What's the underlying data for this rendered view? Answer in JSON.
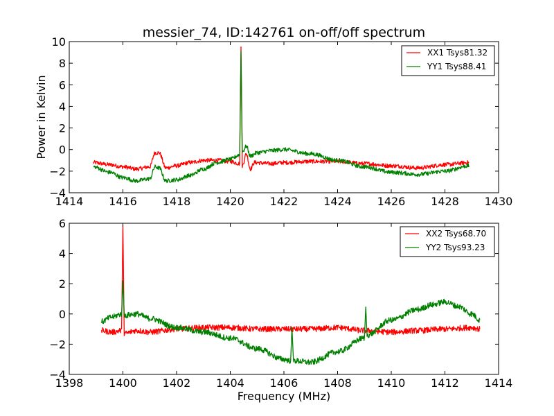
{
  "chart_data": [
    {
      "type": "line",
      "title": "messier_74, ID:142761 on-off/off spectrum",
      "xlabel": "",
      "ylabel": "Power in Kelvin",
      "xlim": [
        1414,
        1430
      ],
      "ylim": [
        -4,
        10
      ],
      "xticks": [
        "1414",
        "1416",
        "1418",
        "1420",
        "1422",
        "1424",
        "1426",
        "1428",
        "1430"
      ],
      "yticks": [
        "-4",
        "-2",
        "0",
        "2",
        "4",
        "6",
        "8",
        "10"
      ],
      "legend_position": "top-right",
      "grid": false,
      "series": [
        {
          "name": "XX1 Tsys81.32",
          "color": "#ff0000",
          "x": [
            1414.9,
            1415.5,
            1416.0,
            1416.5,
            1417.0,
            1417.2,
            1417.35,
            1417.6,
            1418.0,
            1418.5,
            1419.0,
            1419.5,
            1420.0,
            1420.35,
            1420.4,
            1420.45,
            1420.6,
            1420.75,
            1420.9,
            1421.5,
            1422.0,
            1423.0,
            1424.0,
            1425.0,
            1426.0,
            1427.0,
            1428.0,
            1428.9
          ],
          "y": [
            -1.2,
            -1.4,
            -1.6,
            -1.8,
            -1.6,
            -0.3,
            -0.3,
            -1.7,
            -1.5,
            -1.2,
            -1.0,
            -1.0,
            -1.1,
            -1.3,
            9.4,
            -1.5,
            -0.4,
            -1.8,
            -1.2,
            -1.3,
            -1.2,
            -1.1,
            -1.1,
            -1.3,
            -1.5,
            -1.7,
            -1.4,
            -1.2
          ]
        },
        {
          "name": "YY1 Tsys88.41",
          "color": "#008000",
          "x": [
            1414.9,
            1415.5,
            1416.0,
            1416.5,
            1417.0,
            1417.2,
            1417.35,
            1417.6,
            1418.0,
            1418.5,
            1419.0,
            1419.5,
            1420.0,
            1420.35,
            1420.4,
            1420.45,
            1420.6,
            1420.75,
            1421.0,
            1421.5,
            1422.0,
            1423.0,
            1424.0,
            1425.0,
            1426.0,
            1427.0,
            1428.0,
            1428.9
          ],
          "y": [
            -1.6,
            -2.1,
            -2.6,
            -2.9,
            -2.7,
            -1.6,
            -1.7,
            -2.9,
            -2.8,
            -2.4,
            -1.8,
            -1.2,
            -0.9,
            -0.5,
            9.2,
            -0.2,
            0.3,
            -0.6,
            -0.3,
            -0.1,
            0.0,
            -0.4,
            -1.0,
            -1.6,
            -2.1,
            -2.3,
            -2.0,
            -1.5
          ]
        }
      ]
    },
    {
      "type": "line",
      "title": "",
      "xlabel": "Frequency (MHz)",
      "ylabel": "",
      "xlim": [
        1398,
        1414
      ],
      "ylim": [
        -4,
        6
      ],
      "xticks": [
        "1398",
        "1400",
        "1402",
        "1404",
        "1406",
        "1408",
        "1410",
        "1412",
        "1414"
      ],
      "yticks": [
        "-4",
        "-2",
        "0",
        "2",
        "4",
        "6"
      ],
      "legend_position": "top-right",
      "grid": false,
      "series": [
        {
          "name": "XX2 Tsys68.70",
          "color": "#ff0000",
          "x": [
            1399.2,
            1399.6,
            1399.95,
            1400.0,
            1400.05,
            1400.5,
            1401.0,
            1402.0,
            1403.0,
            1404.0,
            1405.0,
            1406.0,
            1407.0,
            1408.0,
            1409.0,
            1410.0,
            1411.0,
            1412.0,
            1413.0,
            1413.3
          ],
          "y": [
            -1.1,
            -1.2,
            -1.1,
            6.0,
            -1.3,
            -1.1,
            -1.2,
            -1.0,
            -0.9,
            -0.9,
            -1.0,
            -1.0,
            -1.0,
            -0.9,
            -1.1,
            -1.2,
            -1.1,
            -1.0,
            -0.9,
            -1.0
          ]
        },
        {
          "name": "YY2 Tsys93.23",
          "color": "#008000",
          "x": [
            1399.2,
            1399.6,
            1399.95,
            1400.0,
            1400.05,
            1400.5,
            1401.0,
            1402.0,
            1403.0,
            1404.0,
            1405.0,
            1406.0,
            1406.25,
            1406.3,
            1406.35,
            1407.0,
            1408.0,
            1409.0,
            1409.05,
            1409.1,
            1410.0,
            1411.0,
            1411.5,
            1412.0,
            1412.5,
            1413.0,
            1413.3
          ],
          "y": [
            -0.5,
            -0.2,
            0.0,
            2.1,
            -0.1,
            0.0,
            -0.3,
            -0.9,
            -1.2,
            -1.6,
            -2.3,
            -3.0,
            -3.1,
            -1.0,
            -3.1,
            -3.2,
            -2.5,
            -1.6,
            0.4,
            -1.4,
            -0.4,
            0.3,
            0.6,
            0.8,
            0.5,
            0.0,
            -0.4
          ]
        }
      ]
    }
  ]
}
